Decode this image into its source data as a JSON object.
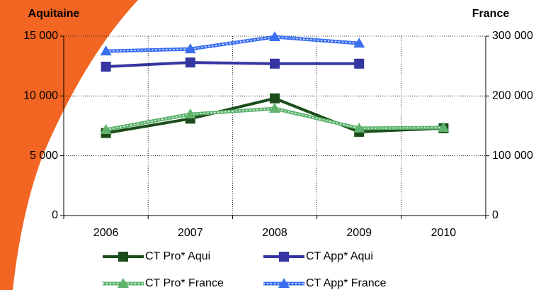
{
  "chart_data": {
    "type": "line",
    "y_label": "Aquitaine",
    "y2_label": "France",
    "categories": [
      "2006",
      "2007",
      "2008",
      "2009",
      "2010"
    ],
    "series": [
      {
        "name": "CT Pro* Aqui",
        "color": "#1a4d1a",
        "marker": "square",
        "style": "solid",
        "values": [
          6900,
          8100,
          9800,
          7000,
          7300
        ]
      },
      {
        "name": "CT App* Aqui",
        "color": "#3535a3",
        "marker": "square",
        "style": "solid",
        "values": [
          12450,
          12800,
          12700,
          12700,
          null
        ]
      },
      {
        "name": "CT Pro* France",
        "color": "#5fb36f",
        "marker": "triangle",
        "style": "dashed",
        "axis": "y2",
        "values": [
          143500,
          169500,
          179000,
          146000,
          147000
        ]
      },
      {
        "name": "CT App* France",
        "color": "#3a6ff0",
        "marker": "triangle",
        "style": "dashed",
        "axis": "y2",
        "values": [
          275000,
          278500,
          298800,
          288000,
          null
        ]
      }
    ],
    "ylim": [
      0,
      15000
    ],
    "yticks": [
      0,
      {
        "value": 5000,
        "label": "5 000"
      },
      {
        "value": 10000,
        "label": "10 000"
      },
      {
        "value": 15000,
        "label": "15 000"
      }
    ],
    "y2lim": [
      0,
      300000
    ],
    "y2ticks": [
      0,
      {
        "value": 100000,
        "label": "100 000"
      },
      {
        "value": 200000,
        "label": "200 000"
      },
      {
        "value": 300000,
        "label": "300 000"
      }
    ],
    "grid": true
  }
}
